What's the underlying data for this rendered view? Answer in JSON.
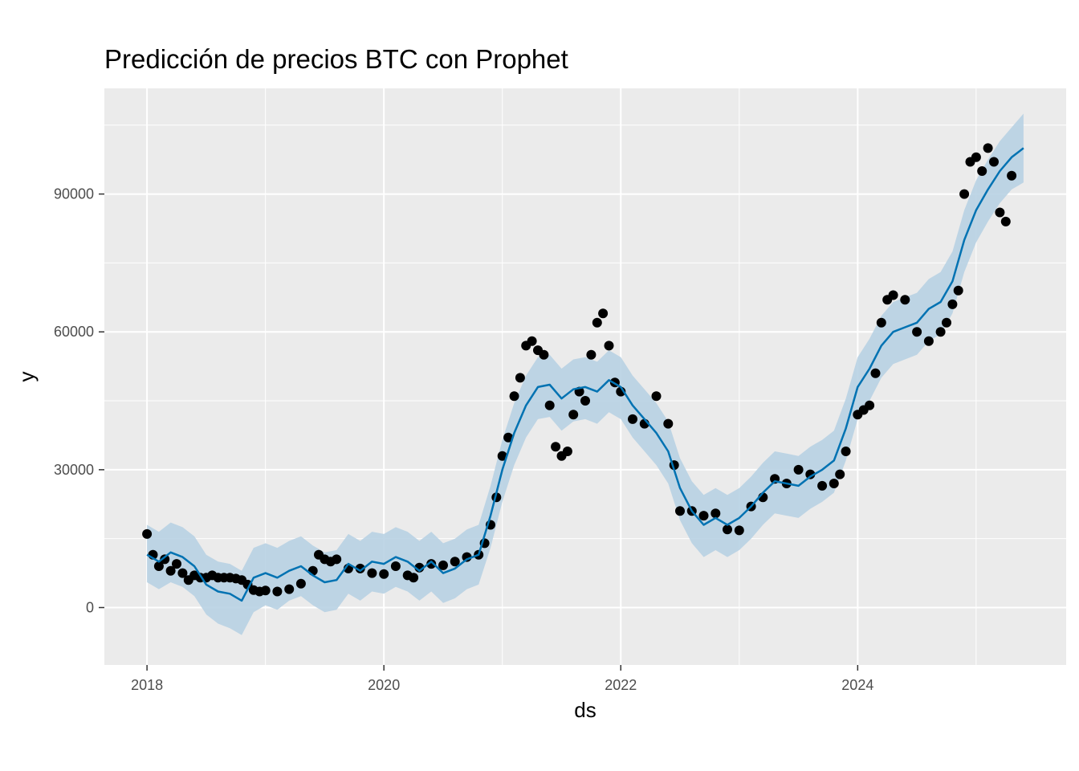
{
  "chart_data": {
    "type": "line",
    "title": "Predicción de precios BTC con Prophet",
    "xlabel": "ds",
    "ylabel": "y",
    "xlim": [
      2017.64,
      2025.76
    ],
    "ylim": [
      -12500,
      113000
    ],
    "x_ticks": [
      2018,
      2020,
      2022,
      2024
    ],
    "x_tick_labels": [
      "2018",
      "2020",
      "2022",
      "2024"
    ],
    "y_ticks": [
      0,
      30000,
      60000,
      90000
    ],
    "y_tick_labels": [
      "0",
      "30000",
      "60000",
      "90000"
    ],
    "grid": true,
    "legend": "none",
    "colors": {
      "panel": "#ebebeb",
      "grid": "#ffffff",
      "forecast_line": "#0072b2",
      "interval": "#b8d2e3",
      "observed": "#000000"
    },
    "series": [
      {
        "kind": "observed_points",
        "x": [
          2018.0,
          2018.05,
          2018.1,
          2018.15,
          2018.2,
          2018.25,
          2018.3,
          2018.35,
          2018.4,
          2018.45,
          2018.5,
          2018.55,
          2018.6,
          2018.65,
          2018.7,
          2018.75,
          2018.8,
          2018.85,
          2018.9,
          2018.95,
          2019.0,
          2019.1,
          2019.2,
          2019.3,
          2019.4,
          2019.45,
          2019.5,
          2019.55,
          2019.6,
          2019.7,
          2019.8,
          2019.9,
          2020.0,
          2020.1,
          2020.2,
          2020.25,
          2020.3,
          2020.4,
          2020.5,
          2020.6,
          2020.7,
          2020.8,
          2020.85,
          2020.9,
          2020.95,
          2021.0,
          2021.05,
          2021.1,
          2021.15,
          2021.2,
          2021.25,
          2021.3,
          2021.35,
          2021.4,
          2021.45,
          2021.5,
          2021.55,
          2021.6,
          2021.65,
          2021.7,
          2021.75,
          2021.8,
          2021.85,
          2021.9,
          2021.95,
          2022.0,
          2022.1,
          2022.2,
          2022.3,
          2022.4,
          2022.45,
          2022.5,
          2022.6,
          2022.7,
          2022.8,
          2022.9,
          2023.0,
          2023.1,
          2023.2,
          2023.3,
          2023.4,
          2023.5,
          2023.6,
          2023.7,
          2023.8,
          2023.85,
          2023.9,
          2024.0,
          2024.05,
          2024.1,
          2024.15,
          2024.2,
          2024.25,
          2024.3,
          2024.4,
          2024.5,
          2024.6,
          2024.7,
          2024.75,
          2024.8,
          2024.85,
          2024.9,
          2024.95,
          2025.0,
          2025.05,
          2025.1,
          2025.15,
          2025.2,
          2025.25,
          2025.3
        ],
        "y": [
          16000,
          11500,
          9000,
          10500,
          8000,
          9500,
          7500,
          6000,
          7000,
          6500,
          6500,
          7000,
          6500,
          6500,
          6500,
          6300,
          6000,
          5000,
          3800,
          3500,
          3700,
          3500,
          4000,
          5200,
          8000,
          11500,
          10500,
          10000,
          10500,
          8500,
          8500,
          7500,
          7300,
          9000,
          7000,
          6500,
          8700,
          9500,
          9200,
          10000,
          11000,
          11500,
          14000,
          18000,
          24000,
          33000,
          37000,
          46000,
          50000,
          57000,
          58000,
          56000,
          55000,
          44000,
          35000,
          33000,
          34000,
          42000,
          47000,
          45000,
          55000,
          62000,
          64000,
          57000,
          49000,
          47000,
          41000,
          40000,
          46000,
          40000,
          31000,
          21000,
          21000,
          20000,
          20500,
          17000,
          16800,
          22000,
          24000,
          28000,
          27000,
          30000,
          29000,
          26500,
          27000,
          29000,
          34000,
          42000,
          43000,
          44000,
          51000,
          62000,
          67000,
          68000,
          67000,
          60000,
          58000,
          60000,
          62000,
          66000,
          69000,
          90000,
          97000,
          98000,
          95000,
          100000,
          97000,
          86000,
          84000,
          94000
        ]
      },
      {
        "kind": "forecast",
        "x": [
          2018.0,
          2018.1,
          2018.2,
          2018.3,
          2018.4,
          2018.5,
          2018.6,
          2018.7,
          2018.8,
          2018.9,
          2019.0,
          2019.1,
          2019.2,
          2019.3,
          2019.4,
          2019.5,
          2019.6,
          2019.7,
          2019.8,
          2019.9,
          2020.0,
          2020.1,
          2020.2,
          2020.3,
          2020.4,
          2020.5,
          2020.6,
          2020.7,
          2020.8,
          2020.9,
          2021.0,
          2021.1,
          2021.2,
          2021.3,
          2021.4,
          2021.5,
          2021.6,
          2021.7,
          2021.8,
          2021.9,
          2022.0,
          2022.1,
          2022.2,
          2022.3,
          2022.4,
          2022.5,
          2022.6,
          2022.7,
          2022.8,
          2022.9,
          2023.0,
          2023.1,
          2023.2,
          2023.3,
          2023.4,
          2023.5,
          2023.6,
          2023.7,
          2023.8,
          2023.9,
          2024.0,
          2024.1,
          2024.2,
          2024.3,
          2024.4,
          2024.5,
          2024.6,
          2024.7,
          2024.8,
          2024.9,
          2025.0,
          2025.1,
          2025.2,
          2025.3,
          2025.4
        ],
        "y": [
          11500,
          10000,
          12000,
          11000,
          9000,
          5000,
          3500,
          3000,
          1500,
          6500,
          7500,
          6500,
          8000,
          9000,
          7000,
          5500,
          6000,
          9500,
          8000,
          10000,
          9500,
          11000,
          10000,
          8000,
          10000,
          7500,
          8500,
          10500,
          11500,
          20000,
          30000,
          38000,
          44000,
          48000,
          48500,
          45500,
          47500,
          48000,
          47000,
          49500,
          48000,
          44000,
          41000,
          38000,
          34000,
          26000,
          21000,
          18000,
          19500,
          18000,
          19500,
          22000,
          25000,
          27500,
          27000,
          26500,
          28500,
          30000,
          32000,
          39000,
          48000,
          52000,
          57000,
          60000,
          61000,
          62000,
          65000,
          66500,
          71000,
          80000,
          86500,
          91000,
          95000,
          98000,
          100000
        ]
      },
      {
        "kind": "uncertainty_interval",
        "x": [
          2018.0,
          2018.1,
          2018.2,
          2018.3,
          2018.4,
          2018.5,
          2018.6,
          2018.7,
          2018.8,
          2018.9,
          2019.0,
          2019.1,
          2019.2,
          2019.3,
          2019.4,
          2019.5,
          2019.6,
          2019.7,
          2019.8,
          2019.9,
          2020.0,
          2020.1,
          2020.2,
          2020.3,
          2020.4,
          2020.5,
          2020.6,
          2020.7,
          2020.8,
          2020.9,
          2021.0,
          2021.1,
          2021.2,
          2021.3,
          2021.4,
          2021.5,
          2021.6,
          2021.7,
          2021.8,
          2021.9,
          2022.0,
          2022.1,
          2022.2,
          2022.3,
          2022.4,
          2022.5,
          2022.6,
          2022.7,
          2022.8,
          2022.9,
          2023.0,
          2023.1,
          2023.2,
          2023.3,
          2023.4,
          2023.5,
          2023.6,
          2023.7,
          2023.8,
          2023.9,
          2024.0,
          2024.1,
          2024.2,
          2024.3,
          2024.4,
          2024.5,
          2024.6,
          2024.7,
          2024.8,
          2024.9,
          2025.0,
          2025.1,
          2025.2,
          2025.3,
          2025.4
        ],
        "lower": [
          5500,
          4000,
          5500,
          4500,
          2500,
          -1500,
          -3500,
          -4500,
          -6000,
          -1000,
          500,
          -500,
          1500,
          2500,
          500,
          -1000,
          -500,
          3000,
          1500,
          3500,
          3000,
          4500,
          3500,
          1500,
          3500,
          1000,
          2000,
          4000,
          5000,
          13000,
          23000,
          31000,
          37000,
          41000,
          41500,
          38500,
          40500,
          41000,
          40000,
          42500,
          41000,
          37000,
          34000,
          31000,
          27000,
          19000,
          14000,
          11000,
          12500,
          11000,
          12500,
          15000,
          18000,
          20500,
          20000,
          19500,
          21500,
          23000,
          25000,
          32000,
          41000,
          45000,
          50000,
          53000,
          54000,
          55000,
          58000,
          59500,
          64000,
          73000,
          79500,
          84000,
          88000,
          91000,
          92500
        ],
        "upper": [
          18000,
          16500,
          18500,
          17500,
          15500,
          11500,
          10000,
          9500,
          8000,
          13000,
          14000,
          13000,
          14500,
          15500,
          13500,
          12000,
          12500,
          16000,
          14500,
          16500,
          16000,
          17500,
          16500,
          14500,
          16500,
          14000,
          15000,
          17000,
          18000,
          26500,
          36500,
          44500,
          50500,
          54500,
          55000,
          52000,
          54000,
          54500,
          53500,
          56000,
          54500,
          50500,
          47500,
          44500,
          40500,
          32500,
          27500,
          24500,
          26000,
          24500,
          26000,
          28500,
          31500,
          34000,
          33500,
          33000,
          35000,
          36500,
          38500,
          45500,
          54500,
          58500,
          63500,
          66500,
          67500,
          68500,
          71500,
          73000,
          77500,
          86500,
          93000,
          97500,
          101500,
          104500,
          107500
        ]
      }
    ]
  }
}
